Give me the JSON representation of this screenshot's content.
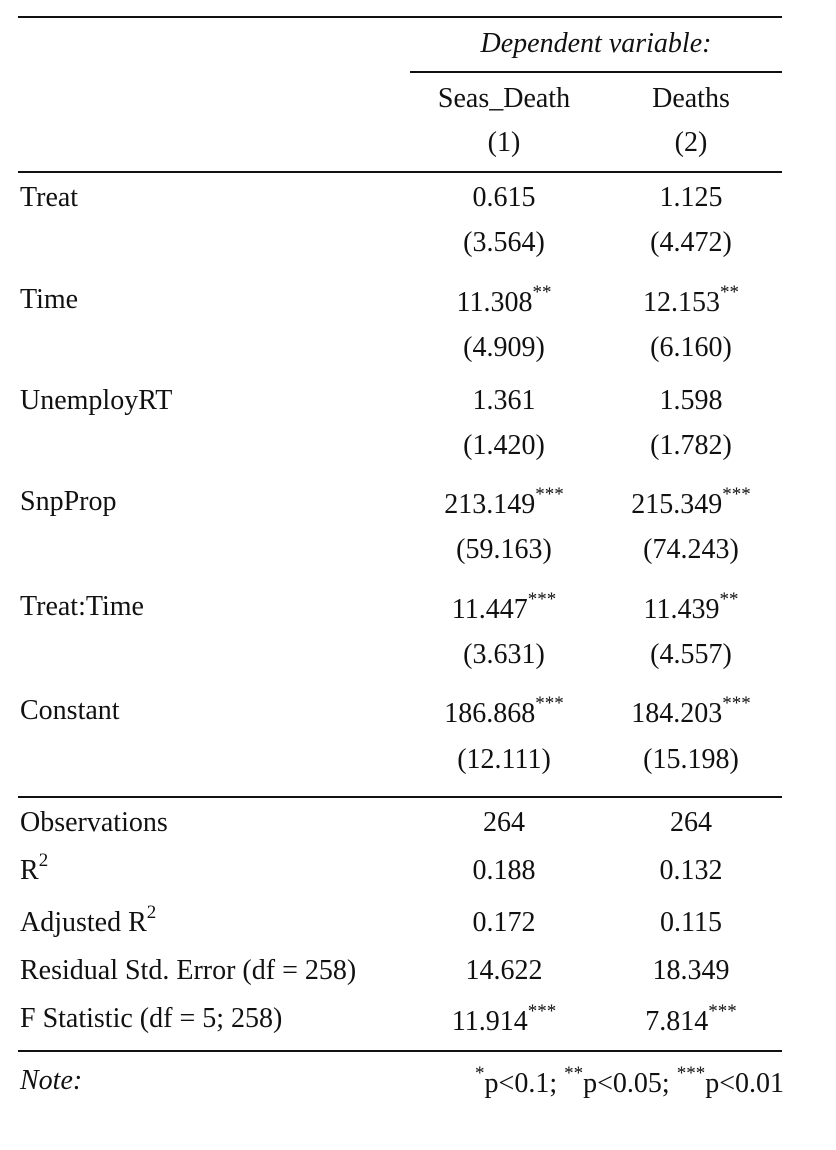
{
  "header": {
    "dependent_variable": "Dependent variable:",
    "columns": [
      {
        "name": "Seas_Death",
        "number": "(1)"
      },
      {
        "name": "Deaths",
        "number": "(2)"
      }
    ]
  },
  "coefficients": [
    {
      "label": "Treat",
      "c1": {
        "value": "0.615",
        "stars": "",
        "se": "(3.564)"
      },
      "c2": {
        "value": "1.125",
        "stars": "",
        "se": "(4.472)"
      }
    },
    {
      "label": "Time",
      "c1": {
        "value": "11.308",
        "stars": "**",
        "se": "(4.909)"
      },
      "c2": {
        "value": "12.153",
        "stars": "**",
        "se": "(6.160)"
      }
    },
    {
      "label": "UnemployRT",
      "c1": {
        "value": "1.361",
        "stars": "",
        "se": "(1.420)"
      },
      "c2": {
        "value": "1.598",
        "stars": "",
        "se": "(1.782)"
      }
    },
    {
      "label": "SnpProp",
      "c1": {
        "value": "213.149",
        "stars": "***",
        "se": "(59.163)"
      },
      "c2": {
        "value": "215.349",
        "stars": "***",
        "se": "(74.243)"
      }
    },
    {
      "label": "Treat:Time",
      "c1": {
        "value": "11.447",
        "stars": "***",
        "se": "(3.631)"
      },
      "c2": {
        "value": "11.439",
        "stars": "**",
        "se": "(4.557)"
      }
    },
    {
      "label": "Constant",
      "c1": {
        "value": "186.868",
        "stars": "***",
        "se": "(12.111)"
      },
      "c2": {
        "value": "184.203",
        "stars": "***",
        "se": "(15.198)"
      }
    }
  ],
  "stats": [
    {
      "label": "Observations",
      "label_sup": "",
      "c1": "264",
      "c1_stars": "",
      "c2": "264",
      "c2_stars": ""
    },
    {
      "label": "R",
      "label_sup": "2",
      "c1": "0.188",
      "c1_stars": "",
      "c2": "0.132",
      "c2_stars": ""
    },
    {
      "label": "Adjusted R",
      "label_sup": "2",
      "c1": "0.172",
      "c1_stars": "",
      "c2": "0.115",
      "c2_stars": ""
    },
    {
      "label": "Residual Std. Error (df = 258)",
      "label_sup": "",
      "c1": "14.622",
      "c1_stars": "",
      "c2": "18.349",
      "c2_stars": ""
    },
    {
      "label": "F Statistic (df = 5; 258)",
      "label_sup": "",
      "c1": "11.914",
      "c1_stars": "***",
      "c2": "7.814",
      "c2_stars": "***"
    }
  ],
  "note": {
    "label": "Note:",
    "s1": "*",
    "t1": "p<0.1; ",
    "s2": "**",
    "t2": "p<0.05; ",
    "s3": "***",
    "t3": "p<0.01"
  }
}
